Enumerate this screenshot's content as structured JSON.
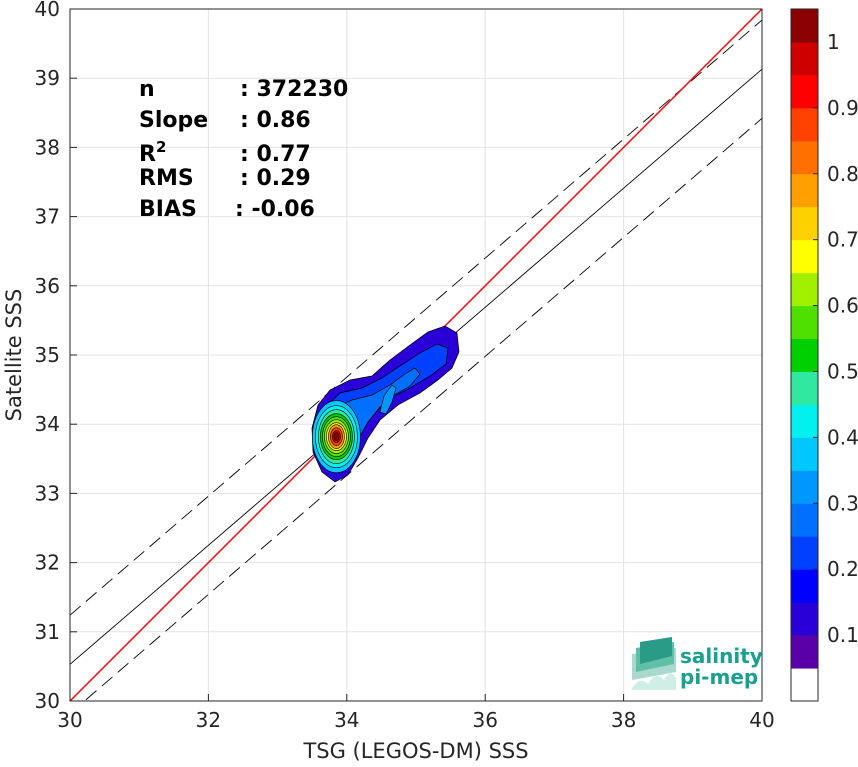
{
  "chart_data": {
    "type": "heatmap",
    "subtype": "density-contour-scatter",
    "xlabel": "TSG (LEGOS-DM) SSS",
    "ylabel": "Satellite SSS",
    "xlim": [
      30,
      40
    ],
    "ylim": [
      30,
      40
    ],
    "xticks": [
      "30",
      "32",
      "34",
      "36",
      "38",
      "40"
    ],
    "yticks": [
      "30",
      "31",
      "32",
      "33",
      "34",
      "35",
      "36",
      "37",
      "38",
      "39",
      "40"
    ],
    "grid": true,
    "stats": [
      {
        "label": "n",
        "value": ": 372230"
      },
      {
        "label": "Slope",
        "value": ": 0.86"
      },
      {
        "label": "R",
        "sup": "2",
        "value": ": 0.77"
      },
      {
        "label": "RMS",
        "value": ": 0.29"
      },
      {
        "label": "BIAS",
        "value": ": -0.06"
      }
    ],
    "lines": {
      "identity": {
        "x": [
          30,
          40
        ],
        "y": [
          30,
          40
        ],
        "color": "#ff0000"
      },
      "fit": {
        "x": [
          30,
          40
        ],
        "y": [
          30.53,
          39.13
        ],
        "color": "#000000"
      },
      "upper_bound": {
        "x": [
          30,
          40
        ],
        "y": [
          31.24,
          39.84
        ],
        "style": "dashed"
      },
      "lower_bound": {
        "x": [
          30,
          40
        ],
        "y": [
          29.82,
          38.42
        ],
        "style": "dashed"
      }
    },
    "density_peak": {
      "x": 33.85,
      "y": 33.82
    },
    "contour_levels": [
      0.05,
      0.1,
      0.15,
      0.2,
      0.25,
      0.3,
      0.35,
      0.4,
      0.45,
      0.5,
      0.55,
      0.6,
      0.65,
      0.7,
      0.75,
      0.8,
      0.85,
      0.9,
      0.95,
      1.0
    ],
    "colorbar": {
      "ticks": [
        "0.1",
        "0.2",
        "0.3",
        "0.4",
        "0.5",
        "0.6",
        "0.7",
        "0.8",
        "0.9",
        "1"
      ],
      "tick_values": [
        0.1,
        0.2,
        0.3,
        0.4,
        0.5,
        0.6,
        0.7,
        0.8,
        0.9,
        1.0
      ],
      "colors": [
        "#ffffff",
        "#5a00a8",
        "#2a00d8",
        "#0000ff",
        "#0040ff",
        "#0070ff",
        "#0098ff",
        "#00c8ff",
        "#00f0f0",
        "#30e8a0",
        "#00d000",
        "#50e000",
        "#a0f000",
        "#ffff00",
        "#ffd000",
        "#ffa000",
        "#ff7000",
        "#ff4000",
        "#ff0000",
        "#d00000",
        "#8b0000"
      ]
    }
  },
  "logo": {
    "line1": "salinity",
    "line2": "pi-mep"
  }
}
